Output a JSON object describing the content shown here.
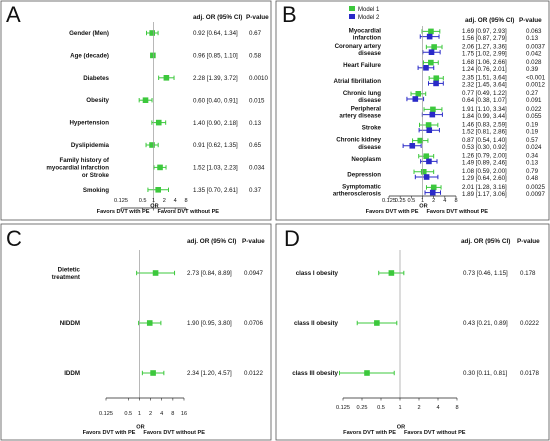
{
  "colors": {
    "model1": "#3cc83c",
    "model2": "#2a2ac8",
    "refline": "#9a9a9a"
  },
  "chart_data": [
    {
      "panel": "A",
      "type": "forest",
      "header": "adj. OR (95% CI)",
      "header2": "P-value",
      "xscale": "log2",
      "xlim": [
        0.125,
        8
      ],
      "ticks": [
        "0.125",
        "0.5",
        "1",
        "2",
        "4",
        "8"
      ],
      "axis_label": "OR",
      "favors_left": "Favors DVT with PE",
      "favors_right": "Favors DVT without PE",
      "rows": [
        {
          "label": [
            "Gender (Men)"
          ],
          "or": 0.92,
          "lo": 0.64,
          "hi": 1.34,
          "ci_text": "0.92 [0.64, 1.34]",
          "p": "0.67"
        },
        {
          "label": [
            "Age (decade)"
          ],
          "or": 0.96,
          "lo": 0.85,
          "hi": 1.1,
          "ci_text": "0.96 [0.85, 1.10]",
          "p": "0.58"
        },
        {
          "label": [
            "Diabetes"
          ],
          "or": 2.28,
          "lo": 1.39,
          "hi": 3.72,
          "ci_text": "2.28 [1.39, 3.72]",
          "p": "0.0010"
        },
        {
          "label": [
            "Obesity"
          ],
          "or": 0.6,
          "lo": 0.4,
          "hi": 0.91,
          "ci_text": "0.60 [0.40, 0.91]",
          "p": "0.015"
        },
        {
          "label": [
            "Hypertension"
          ],
          "or": 1.4,
          "lo": 0.9,
          "hi": 2.18,
          "ci_text": "1.40 [0.90, 2.18]",
          "p": "0.13"
        },
        {
          "label": [
            "Dyslipidemia"
          ],
          "or": 0.91,
          "lo": 0.62,
          "hi": 1.35,
          "ci_text": "0.91 [0.62, 1.35]",
          "p": "0.65"
        },
        {
          "label": [
            "Family history of",
            "myocardial infarction",
            "or Stroke"
          ],
          "or": 1.52,
          "lo": 1.03,
          "hi": 2.23,
          "ci_text": "1.52 [1.03, 2.23]",
          "p": "0.034"
        },
        {
          "label": [
            "Smoking"
          ],
          "or": 1.35,
          "lo": 0.7,
          "hi": 2.61,
          "ci_text": "1.35 [0.70, 2.61]",
          "p": "0.37"
        }
      ]
    },
    {
      "panel": "B",
      "type": "forest",
      "header": "adj. OR (95% CI)",
      "header2": "P-value",
      "legend": [
        "Model 1",
        "Model 2"
      ],
      "xscale": "log2",
      "xlim": [
        0.125,
        8
      ],
      "ticks": [
        "0.125",
        "0.25",
        "0.5",
        "1",
        "2",
        "4",
        "8"
      ],
      "axis_label": "OR",
      "favors_left": "Favors DVT with PE",
      "favors_right": "Favors DVT without PE",
      "rows": [
        {
          "label": [
            "Myocardial",
            "infarction"
          ],
          "m1": {
            "or": 1.69,
            "lo": 0.97,
            "hi": 2.93,
            "ci_text": "1.69 [0.97, 2.93]",
            "p": "0.063"
          },
          "m2": {
            "or": 1.56,
            "lo": 0.87,
            "hi": 2.79,
            "ci_text": "1.56 [0.87, 2.79]",
            "p": "0.13"
          }
        },
        {
          "label": [
            "Coronary artery",
            "disease"
          ],
          "m1": {
            "or": 2.06,
            "lo": 1.27,
            "hi": 3.36,
            "ci_text": "2.06 [1.27, 3.36]",
            "p": "0.0037"
          },
          "m2": {
            "or": 1.75,
            "lo": 1.02,
            "hi": 2.99,
            "ci_text": "1.75 [1.02, 2.99]",
            "p": "0.042"
          }
        },
        {
          "label": [
            "Heart Failure"
          ],
          "m1": {
            "or": 1.68,
            "lo": 1.06,
            "hi": 2.66,
            "ci_text": "1.68 [1.06, 2.66]",
            "p": "0.028"
          },
          "m2": {
            "or": 1.24,
            "lo": 0.76,
            "hi": 2.01,
            "ci_text": "1.24 [0.76, 2.01]",
            "p": "0.39"
          }
        },
        {
          "label": [
            "Atrial fibrillation"
          ],
          "m1": {
            "or": 2.35,
            "lo": 1.51,
            "hi": 3.64,
            "ci_text": "2.35 [1.51, 3.64]",
            "p": "<0.001"
          },
          "m2": {
            "or": 2.32,
            "lo": 1.45,
            "hi": 3.64,
            "ci_text": "2.32 [1.45, 3.64]",
            "p": "0.0012"
          }
        },
        {
          "label": [
            "Chronic lung",
            "disease"
          ],
          "m1": {
            "or": 0.77,
            "lo": 0.49,
            "hi": 1.22,
            "ci_text": "0.77 [0.49, 1.22]",
            "p": "0.27"
          },
          "m2": {
            "or": 0.64,
            "lo": 0.38,
            "hi": 1.07,
            "ci_text": "0.64 [0.38, 1.07]",
            "p": "0.091"
          }
        },
        {
          "label": [
            "Peripheral",
            "artery disease"
          ],
          "m1": {
            "or": 1.91,
            "lo": 1.1,
            "hi": 3.34,
            "ci_text": "1.91 [1.10, 3.34]",
            "p": "0.022"
          },
          "m2": {
            "or": 1.84,
            "lo": 0.99,
            "hi": 3.44,
            "ci_text": "1.84 [0.99, 3.44]",
            "p": "0.055"
          }
        },
        {
          "label": [
            "Stroke"
          ],
          "m1": {
            "or": 1.46,
            "lo": 0.83,
            "hi": 2.59,
            "ci_text": "1.46 [0.83, 2.59]",
            "p": "0.19"
          },
          "m2": {
            "or": 1.52,
            "lo": 0.81,
            "hi": 2.86,
            "ci_text": "1.52 [0.81, 2.86]",
            "p": "0.19"
          }
        },
        {
          "label": [
            "Chronic kidney",
            "disease"
          ],
          "m1": {
            "or": 0.87,
            "lo": 0.54,
            "hi": 1.4,
            "ci_text": "0.87 [0.54, 1.40]",
            "p": "0.57"
          },
          "m2": {
            "or": 0.53,
            "lo": 0.3,
            "hi": 0.92,
            "ci_text": "0.53 [0.30, 0.92]",
            "p": "0.024"
          }
        },
        {
          "label": [
            "Neoplasm"
          ],
          "m1": {
            "or": 1.26,
            "lo": 0.79,
            "hi": 2.0,
            "ci_text": "1.26 [0.79, 2.00]",
            "p": "0.34"
          },
          "m2": {
            "or": 1.49,
            "lo": 0.89,
            "hi": 2.46,
            "ci_text": "1.49 [0.89, 2.46]",
            "p": "0.13"
          }
        },
        {
          "label": [
            "Depression"
          ],
          "m1": {
            "or": 1.08,
            "lo": 0.59,
            "hi": 2.0,
            "ci_text": "1.08 [0.59, 2.00]",
            "p": "0.79"
          },
          "m2": {
            "or": 1.29,
            "lo": 0.64,
            "hi": 2.6,
            "ci_text": "1.29 [0.64, 2.60]",
            "p": "0.48"
          }
        },
        {
          "label": [
            "Symptomatic",
            "artherosclerosis"
          ],
          "m1": {
            "or": 2.01,
            "lo": 1.28,
            "hi": 3.16,
            "ci_text": "2.01 [1.28, 3.16]",
            "p": "0.0025"
          },
          "m2": {
            "or": 1.89,
            "lo": 1.17,
            "hi": 3.06,
            "ci_text": "1.89 [1.17, 3.06]",
            "p": "0.0097"
          }
        }
      ]
    },
    {
      "panel": "C",
      "type": "forest",
      "header": "adj. OR (95% CI)",
      "header2": "P-value",
      "xscale": "log2",
      "xlim": [
        0.125,
        16
      ],
      "ticks": [
        "0.125",
        "0.5",
        "1",
        "2",
        "4",
        "8",
        "16"
      ],
      "axis_label": "OR",
      "favors_left": "Favors DVT with PE",
      "favors_right": "Favors DVT without PE",
      "rows": [
        {
          "label": [
            "Dietetic",
            "treatment"
          ],
          "or": 2.73,
          "lo": 0.84,
          "hi": 8.89,
          "ci_text": "2.73 [0.84, 8.89]",
          "p": "0.0947"
        },
        {
          "label": [
            "NIDDM"
          ],
          "or": 1.9,
          "lo": 0.95,
          "hi": 3.8,
          "ci_text": "1.90 [0.95, 3.80]",
          "p": "0.0706"
        },
        {
          "label": [
            "IDDM"
          ],
          "or": 2.34,
          "lo": 1.2,
          "hi": 4.57,
          "ci_text": "2.34 [1.20, 4.57]",
          "p": "0.0122"
        }
      ]
    },
    {
      "panel": "D",
      "type": "forest",
      "header": "adj. OR (95% CI)",
      "header2": "P-value",
      "xscale": "log2",
      "xlim": [
        0.125,
        8
      ],
      "ticks": [
        "0.125",
        "0.25",
        "0.5",
        "1",
        "2",
        "4",
        "8"
      ],
      "axis_label": "OR",
      "favors_left": "Favors DVT with PE",
      "favors_right": "Favors DVT without PE",
      "rows": [
        {
          "label": [
            "class I obesity"
          ],
          "or": 0.73,
          "lo": 0.46,
          "hi": 1.15,
          "ci_text": "0.73 [0.46, 1.15]",
          "p": "0.178"
        },
        {
          "label": [
            "class II obesity"
          ],
          "or": 0.43,
          "lo": 0.21,
          "hi": 0.89,
          "ci_text": "0.43 [0.21, 0.89]",
          "p": "0.0222"
        },
        {
          "label": [
            "class III obesity"
          ],
          "or": 0.3,
          "lo": 0.11,
          "hi": 0.81,
          "ci_text": "0.30 [0.11, 0.81]",
          "p": "0.0178"
        }
      ]
    }
  ]
}
